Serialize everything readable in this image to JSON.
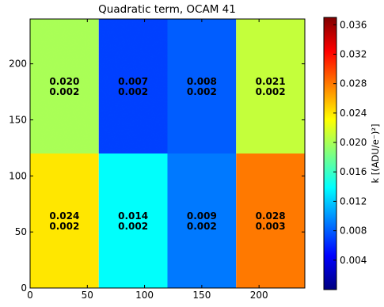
{
  "chart_data": {
    "type": "heatmap",
    "title": "Quadratic term, OCAM 41",
    "xlim": [
      0,
      240
    ],
    "ylim": [
      0,
      240
    ],
    "x_ticks": [
      0,
      50,
      100,
      150,
      200
    ],
    "y_ticks": [
      0,
      50,
      100,
      150,
      200
    ],
    "colorbar": {
      "label": "k [(ADU/e⁻)²]",
      "range": [
        0.0,
        0.037
      ],
      "ticks": [
        "0.004",
        "0.008",
        "0.012",
        "0.016",
        "0.020",
        "0.024",
        "0.028",
        "0.032",
        "0.036"
      ],
      "colormap": "jet"
    },
    "regions": [
      {
        "x": [
          0,
          60
        ],
        "y": [
          120,
          240
        ],
        "value": 0.02,
        "line1": "0.020",
        "line2": "0.002"
      },
      {
        "x": [
          60,
          120
        ],
        "y": [
          120,
          240
        ],
        "value": 0.007,
        "line1": "0.007",
        "line2": "0.002"
      },
      {
        "x": [
          120,
          180
        ],
        "y": [
          120,
          240
        ],
        "value": 0.008,
        "line1": "0.008",
        "line2": "0.002"
      },
      {
        "x": [
          180,
          240
        ],
        "y": [
          120,
          240
        ],
        "value": 0.021,
        "line1": "0.021",
        "line2": "0.002"
      },
      {
        "x": [
          0,
          60
        ],
        "y": [
          0,
          120
        ],
        "value": 0.024,
        "line1": "0.024",
        "line2": "0.002"
      },
      {
        "x": [
          60,
          120
        ],
        "y": [
          0,
          120
        ],
        "value": 0.014,
        "line1": "0.014",
        "line2": "0.002"
      },
      {
        "x": [
          120,
          180
        ],
        "y": [
          0,
          120
        ],
        "value": 0.009,
        "line1": "0.009",
        "line2": "0.002"
      },
      {
        "x": [
          180,
          240
        ],
        "y": [
          0,
          120
        ],
        "value": 0.028,
        "line1": "0.028",
        "line2": "0.003"
      }
    ]
  }
}
